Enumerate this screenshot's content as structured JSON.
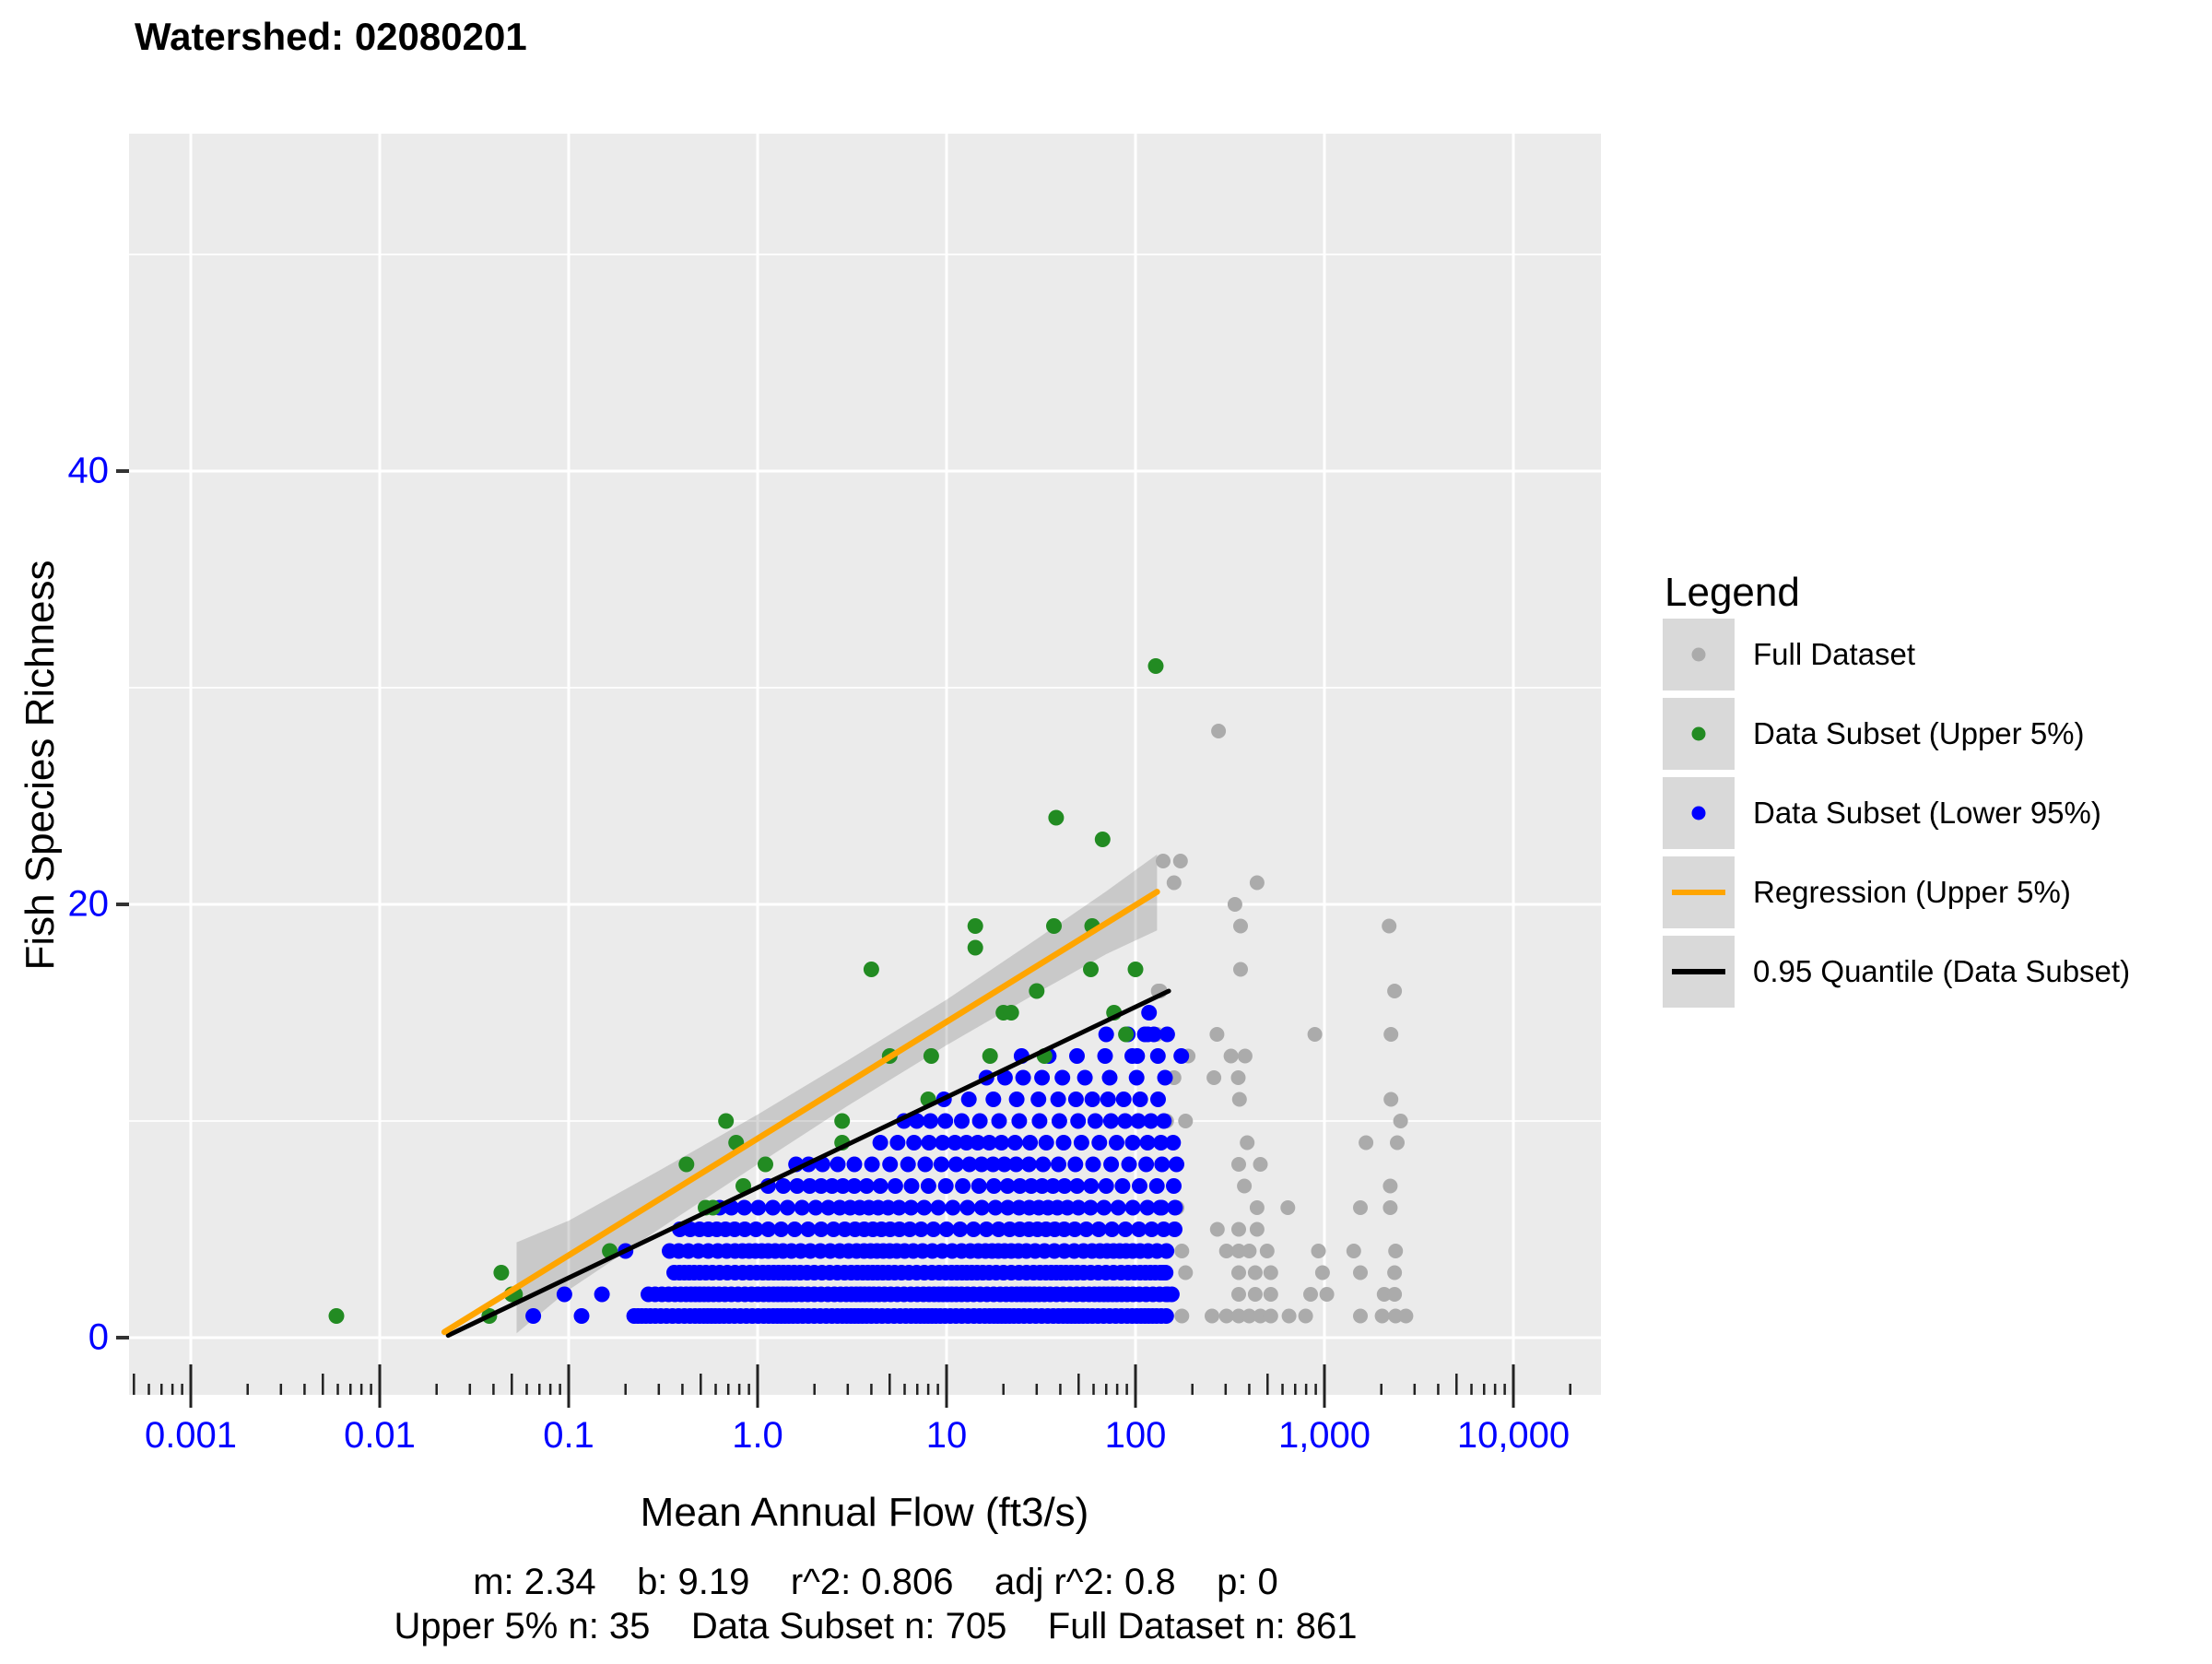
{
  "title": "Watershed: 02080201",
  "axes": {
    "x": {
      "title": "Mean Annual Flow (ft3/s)",
      "scale": "log10",
      "tick_label_color": "#0000FF",
      "ticks": [
        {
          "value": 0.001,
          "label": "0.001"
        },
        {
          "value": 0.01,
          "label": "0.01"
        },
        {
          "value": 0.1,
          "label": "0.1"
        },
        {
          "value": 1,
          "label": "1.0"
        },
        {
          "value": 10,
          "label": "10"
        },
        {
          "value": 100,
          "label": "100"
        },
        {
          "value": 1000,
          "label": "1,000"
        },
        {
          "value": 10000,
          "label": "10,000"
        }
      ]
    },
    "y": {
      "title": "Fish Species Richness",
      "scale": "linear",
      "tick_label_color": "#0000FF",
      "ticks": [
        {
          "value": 0,
          "label": "0"
        },
        {
          "value": 20,
          "label": "20"
        },
        {
          "value": 40,
          "label": "40"
        }
      ]
    }
  },
  "legend": {
    "title": "Legend",
    "key_bg": "#D9D9D9",
    "items": [
      {
        "label": "Full Dataset",
        "glyph": "dot",
        "color": "#ABABAB"
      },
      {
        "label": "Data Subset (Upper 5%)",
        "glyph": "dot",
        "color": "#228B22"
      },
      {
        "label": "Data Subset (Lower 95%)",
        "glyph": "dot",
        "color": "#0000FF"
      },
      {
        "label": "Regression (Upper 5%)",
        "glyph": "line",
        "color": "#FFA500"
      },
      {
        "label": "0.95 Quantile (Data Subset)",
        "glyph": "line",
        "color": "#000000"
      }
    ]
  },
  "stats": {
    "line1": "m: 2.34    b: 9.19    r^2: 0.806    adj r^2: 0.8    p: 0",
    "line2": "Upper 5% n: 35    Data Subset n: 705    Full Dataset n: 861"
  },
  "panel": {
    "bg": "#EBEBEB",
    "grid_color": "#FFFFFF",
    "tick_color": "#222222"
  },
  "chart_data": {
    "type": "scatter",
    "title": "Watershed: 02080201",
    "xlabel": "Mean Annual Flow (ft3/s)",
    "ylabel": "Fish Species Richness",
    "x_scale": "log10",
    "xlim": [
      0.0005,
      30000
    ],
    "ylim": [
      -2.6,
      55.6
    ],
    "grid": {
      "h_major": [
        0,
        20,
        40
      ],
      "h_minor": [
        10,
        30,
        50
      ],
      "v_major": [
        0.001,
        0.01,
        0.1,
        1,
        10,
        100,
        1000,
        10000
      ]
    },
    "series": {
      "full_dataset": {
        "name": "Full Dataset",
        "color": "#ABABAB",
        "points": [
          [
            140,
            22
          ],
          [
            173,
            22
          ],
          [
            160,
            21
          ],
          [
            275,
            28
          ],
          [
            440,
            21
          ],
          [
            336,
            20
          ],
          [
            360,
            19
          ],
          [
            2200,
            19
          ],
          [
            360,
            17
          ],
          [
            132,
            16
          ],
          [
            2350,
            16
          ],
          [
            135,
            16
          ],
          [
            130,
            14
          ],
          [
            270,
            14
          ],
          [
            890,
            14
          ],
          [
            2250,
            14
          ],
          [
            190,
            13
          ],
          [
            320,
            13
          ],
          [
            380,
            13
          ],
          [
            160,
            12
          ],
          [
            260,
            12
          ],
          [
            350,
            12
          ],
          [
            355,
            11
          ],
          [
            2250,
            11
          ],
          [
            146,
            10
          ],
          [
            184,
            10
          ],
          [
            2530,
            10
          ],
          [
            390,
            9
          ],
          [
            1660,
            9
          ],
          [
            2430,
            9
          ],
          [
            352,
            8
          ],
          [
            458,
            8
          ],
          [
            377,
            7
          ],
          [
            2230,
            7
          ],
          [
            166,
            6
          ],
          [
            440,
            6
          ],
          [
            640,
            6
          ],
          [
            1550,
            6
          ],
          [
            2230,
            6
          ],
          [
            271,
            5
          ],
          [
            352,
            5
          ],
          [
            440,
            5
          ],
          [
            146,
            4
          ],
          [
            176,
            4
          ],
          [
            303,
            4
          ],
          [
            352,
            4
          ],
          [
            400,
            4
          ],
          [
            497,
            4
          ],
          [
            930,
            4
          ],
          [
            1430,
            4
          ],
          [
            2380,
            4
          ],
          [
            184,
            3
          ],
          [
            352,
            3
          ],
          [
            430,
            3
          ],
          [
            520,
            3
          ],
          [
            977,
            3
          ],
          [
            1550,
            3
          ],
          [
            2350,
            3
          ],
          [
            153,
            2
          ],
          [
            352,
            2
          ],
          [
            430,
            2
          ],
          [
            520,
            2
          ],
          [
            845,
            2
          ],
          [
            1030,
            2
          ],
          [
            2070,
            2
          ],
          [
            2350,
            2
          ],
          [
            146,
            1
          ],
          [
            176,
            1
          ],
          [
            254,
            1
          ],
          [
            303,
            1
          ],
          [
            352,
            1
          ],
          [
            400,
            1
          ],
          [
            458,
            1
          ],
          [
            520,
            1
          ],
          [
            650,
            1
          ],
          [
            795,
            1
          ],
          [
            1550,
            1
          ],
          [
            2020,
            1
          ],
          [
            2380,
            1
          ],
          [
            2700,
            1
          ]
        ]
      },
      "upper5": {
        "name": "Data Subset (Upper 5%)",
        "color": "#228B22",
        "points": [
          [
            0.0059,
            1
          ],
          [
            0.038,
            1
          ],
          [
            0.044,
            3
          ],
          [
            0.05,
            2
          ],
          [
            0.052,
            2
          ],
          [
            0.165,
            4
          ],
          [
            0.42,
            8
          ],
          [
            0.53,
            6
          ],
          [
            0.58,
            6
          ],
          [
            0.68,
            10
          ],
          [
            0.77,
            9
          ],
          [
            0.84,
            7
          ],
          [
            1.1,
            8
          ],
          [
            2.8,
            10
          ],
          [
            2.8,
            9
          ],
          [
            4,
            17
          ],
          [
            5,
            13
          ],
          [
            8,
            11
          ],
          [
            8.3,
            13
          ],
          [
            14.2,
            19
          ],
          [
            14.2,
            18
          ],
          [
            17,
            13
          ],
          [
            20,
            15
          ],
          [
            22,
            15
          ],
          [
            30,
            16
          ],
          [
            33,
            13
          ],
          [
            37,
            19
          ],
          [
            38,
            24
          ],
          [
            58,
            17
          ],
          [
            59,
            19
          ],
          [
            67,
            23
          ],
          [
            77,
            15
          ],
          [
            89,
            14
          ],
          [
            100,
            17
          ],
          [
            128,
            31
          ]
        ]
      },
      "lower95": {
        "name": "Data Subset (Lower 95%)",
        "color": "#0000FF",
        "points": [
          [
            0.065,
            1
          ],
          [
            0.095,
            2
          ],
          [
            0.117,
            1
          ],
          [
            0.15,
            2
          ],
          [
            0.2,
            4
          ],
          [
            112,
            14
          ],
          [
            118,
            15
          ],
          [
            125,
            14
          ],
          [
            102,
            13
          ],
          [
            135,
            6
          ],
          [
            140,
            3
          ],
          [
            148,
            2
          ]
        ],
        "bands": [
          {
            "y": 1,
            "xmin": 0.22,
            "xmax": 150,
            "n": 110
          },
          {
            "y": 2,
            "xmin": 0.27,
            "xmax": 150,
            "n": 95
          },
          {
            "y": 3,
            "xmin": 0.35,
            "xmax": 150,
            "n": 80
          },
          {
            "y": 4,
            "xmin": 0.36,
            "xmax": 150,
            "n": 62
          },
          {
            "y": 5,
            "xmin": 0.36,
            "xmax": 150,
            "n": 46
          },
          {
            "y": 6,
            "xmin": 0.68,
            "xmax": 150,
            "n": 38
          },
          {
            "y": 7,
            "xmin": 1.05,
            "xmax": 150,
            "n": 30
          },
          {
            "y": 8,
            "xmin": 1.7,
            "xmax": 150,
            "n": 26
          },
          {
            "y": 9,
            "xmin": 4.3,
            "xmax": 150,
            "n": 21
          },
          {
            "y": 10,
            "xmin": 6,
            "xmax": 150,
            "n": 17
          },
          {
            "y": 11,
            "xmin": 10,
            "xmax": 150,
            "n": 12
          },
          {
            "y": 12,
            "xmin": 15,
            "xmax": 150,
            "n": 9
          },
          {
            "y": 13,
            "xmin": 28,
            "xmax": 150,
            "n": 7
          },
          {
            "y": 14,
            "xmin": 60,
            "xmax": 150,
            "n": 4
          }
        ]
      }
    },
    "regression_upper5": {
      "name": "Regression (Upper 5%)",
      "color": "#FFA500",
      "m_ln": 2.34,
      "b": 9.19,
      "x_range": [
        0.022,
        130
      ]
    },
    "quantile_095": {
      "name": "0.95 Quantile (Data Subset)",
      "color": "#000000",
      "m_ln": 1.81,
      "b": 6.93,
      "x_range": [
        0.023,
        150
      ]
    },
    "confidence_ribbon": {
      "color": "rgba(115,115,115,0.28)",
      "points": [
        [
          0.053,
          0.2,
          4.4
        ],
        [
          0.1,
          2.2,
          5.4
        ],
        [
          0.3,
          5.0,
          7.7
        ],
        [
          1,
          8.0,
          10.3
        ],
        [
          3,
          10.7,
          12.8
        ],
        [
          10,
          13.5,
          15.6
        ],
        [
          30,
          15.9,
          18.4
        ],
        [
          70,
          17.7,
          20.6
        ],
        [
          130,
          18.8,
          22.3
        ]
      ]
    }
  }
}
